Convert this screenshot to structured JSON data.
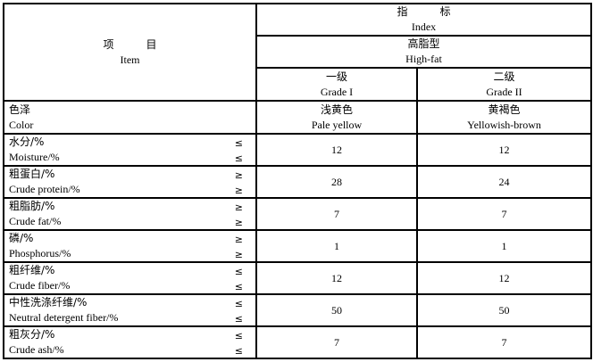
{
  "header": {
    "item_zh": "项　　　目",
    "item_en": "Item",
    "index_zh": "指　　　标",
    "index_en": "Index",
    "type_zh": "高脂型",
    "type_en": "High-fat",
    "grades": [
      {
        "zh": "一级",
        "en": "Grade I"
      },
      {
        "zh": "二级",
        "en": "Grade II"
      }
    ]
  },
  "rows": [
    {
      "zh": "色泽",
      "en": "Color",
      "sym": "",
      "v1_zh": "浅黄色",
      "v1": "Pale yellow",
      "v2_zh": "黄褐色",
      "v2": "Yellowish-brown"
    },
    {
      "zh": "水分/%",
      "en": "Moisture/%",
      "sym": "≤",
      "v1": "12",
      "v2": "12"
    },
    {
      "zh": "粗蛋白/%",
      "en": "Crude protein/%",
      "sym": "≥",
      "v1": "28",
      "v2": "24"
    },
    {
      "zh": "粗脂肪/%",
      "en": "Crude fat/%",
      "sym": "≥",
      "v1": "7",
      "v2": "7"
    },
    {
      "zh": "磷/%",
      "en": "Phosphorus/%",
      "sym": "≥",
      "v1": "1",
      "v2": "1"
    },
    {
      "zh": "粗纤维/%",
      "en": "Crude fiber/%",
      "sym": "≤",
      "v1": "12",
      "v2": "12"
    },
    {
      "zh": "中性洗涤纤维/%",
      "en": "Neutral detergent fiber/%",
      "sym": "≤",
      "v1": "50",
      "v2": "50"
    },
    {
      "zh": "粗灰分/%",
      "en": "Crude ash/%",
      "sym": "≤",
      "v1": "7",
      "v2": "7"
    }
  ]
}
